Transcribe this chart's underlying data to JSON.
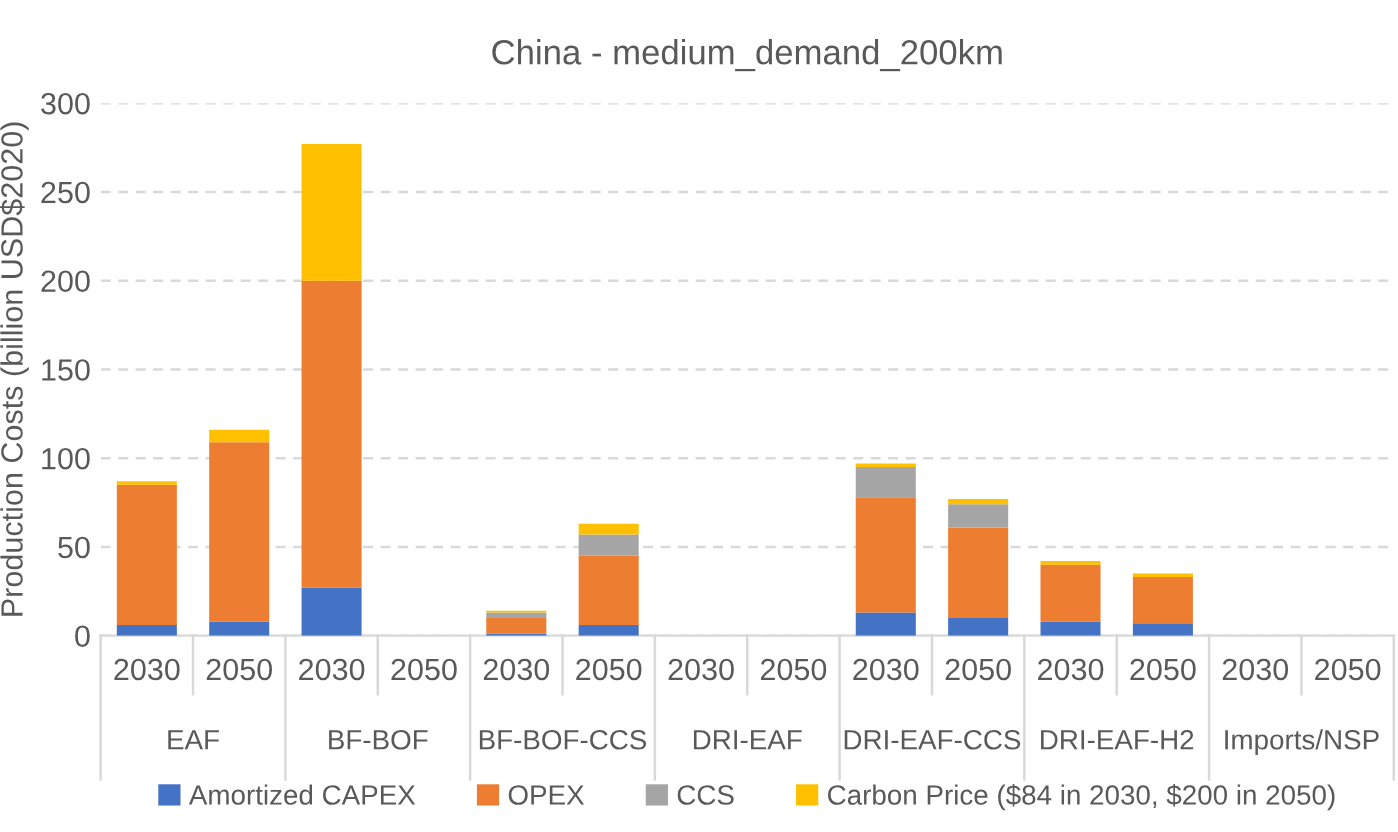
{
  "chart_data": {
    "type": "bar",
    "stacked": true,
    "title": "China - medium_demand_200km",
    "ylabel": "Production Costs (billion USD$2020)",
    "categories": [
      "2030",
      "2050",
      "2030",
      "2050",
      "2030",
      "2050",
      "2030",
      "2050",
      "2030",
      "2050",
      "2030",
      "2050",
      "2030",
      "2050"
    ],
    "annotations": [
      "EAF",
      "BF-BOF",
      "BF-BOF-CCS",
      "DRI-EAF",
      "DRI-EAF-CCS",
      "DRI-EAF-H2",
      "Imports/NSP"
    ],
    "series": [
      {
        "name": "Amortized CAPEX",
        "color": "#4472c4",
        "values": [
          6,
          8,
          27,
          0,
          1,
          6,
          0,
          0,
          13,
          10,
          8,
          7,
          0,
          0
        ]
      },
      {
        "name": "OPEX",
        "color": "#ed7d31",
        "values": [
          79,
          101,
          173,
          0,
          9,
          39,
          0,
          0,
          65,
          51,
          32,
          26,
          0,
          0
        ]
      },
      {
        "name": "CCS",
        "color": "#a5a5a5",
        "values": [
          0,
          0,
          0,
          0,
          3,
          12,
          0,
          0,
          17,
          13,
          0,
          0,
          0,
          0
        ]
      },
      {
        "name": "Carbon Price ($84 in 2030, $200 in 2050)",
        "color": "#ffc000",
        "values": [
          2,
          7,
          77,
          0,
          1,
          6,
          0,
          0,
          2,
          3,
          2,
          2,
          0,
          0
        ]
      }
    ],
    "ylim": [
      0,
      300
    ],
    "yticks": [
      0,
      50,
      100,
      150,
      200,
      250,
      300
    ],
    "grid": "y",
    "legend": "bottom"
  }
}
